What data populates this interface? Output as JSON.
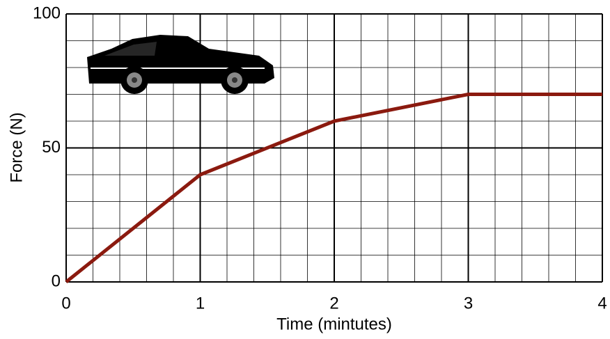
{
  "chart_data": {
    "type": "line",
    "x_label": "Time (mintutes)",
    "y_label": "Force (N)",
    "x": [
      0,
      1,
      2,
      3,
      4
    ],
    "series": [
      {
        "color": "#8b1a0f",
        "values": [
          0,
          40,
          60,
          70,
          70
        ]
      }
    ],
    "xlim": [
      0,
      4
    ],
    "xticks": [
      0,
      1,
      2,
      3,
      4
    ],
    "ylim": [
      0,
      100
    ],
    "yticks": [
      0,
      50,
      100
    ],
    "grid": true
  }
}
